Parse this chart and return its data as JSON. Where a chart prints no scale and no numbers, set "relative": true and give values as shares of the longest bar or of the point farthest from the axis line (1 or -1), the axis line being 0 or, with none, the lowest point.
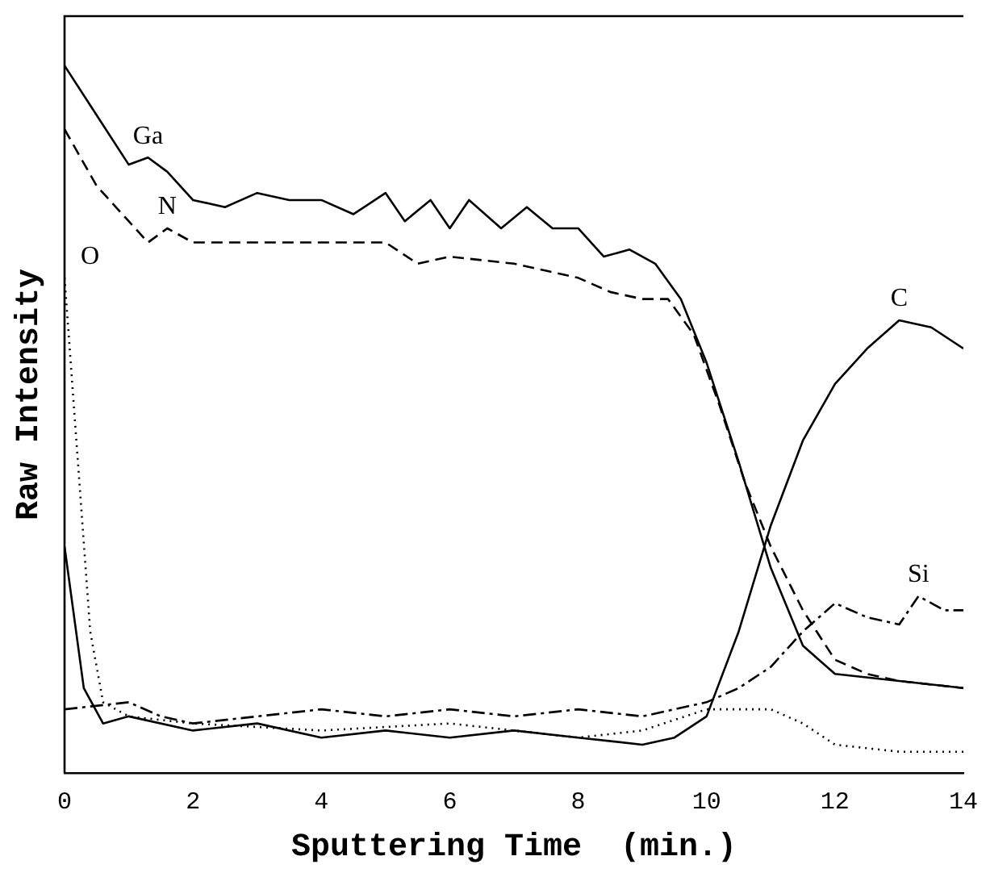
{
  "chart_data": {
    "type": "line",
    "relative": true,
    "xlabel": "Sputtering Time  (min.)",
    "ylabel": "Raw Intensity",
    "xlim": [
      0,
      14
    ],
    "xticks": [
      0,
      2,
      4,
      6,
      8,
      10,
      12,
      14
    ],
    "legend": false,
    "marker": "none",
    "grid": false,
    "series": [
      {
        "name": "Ga",
        "color": "#000000",
        "line_style": "solid",
        "x": [
          0,
          0.5,
          1,
          1.3,
          1.6,
          2,
          2.5,
          3,
          3.5,
          4,
          4.5,
          5,
          5.3,
          5.7,
          6,
          6.3,
          6.8,
          7.2,
          7.6,
          8,
          8.4,
          8.8,
          9.2,
          9.6,
          10,
          10.5,
          11,
          11.5,
          12,
          13,
          14
        ],
        "values": [
          1.0,
          0.93,
          0.86,
          0.87,
          0.85,
          0.81,
          0.8,
          0.82,
          0.81,
          0.81,
          0.79,
          0.82,
          0.78,
          0.81,
          0.77,
          0.81,
          0.77,
          0.8,
          0.77,
          0.77,
          0.73,
          0.74,
          0.72,
          0.67,
          0.58,
          0.44,
          0.29,
          0.18,
          0.14,
          0.13,
          0.12
        ]
      },
      {
        "name": "N",
        "color": "#000000",
        "line_style": "dashed",
        "x": [
          0,
          0.5,
          1,
          1.3,
          1.6,
          2,
          3,
          4,
          5,
          5.5,
          6,
          7,
          7.5,
          8,
          8.5,
          9,
          9.4,
          9.8,
          10.2,
          10.6,
          11,
          11.5,
          12,
          12.5,
          13,
          14
        ],
        "values": [
          0.91,
          0.83,
          0.78,
          0.75,
          0.77,
          0.75,
          0.75,
          0.75,
          0.75,
          0.72,
          0.73,
          0.72,
          0.71,
          0.7,
          0.68,
          0.67,
          0.67,
          0.62,
          0.52,
          0.41,
          0.32,
          0.23,
          0.16,
          0.14,
          0.13,
          0.12
        ]
      },
      {
        "name": "O",
        "color": "#000000",
        "line_style": "dotted",
        "x": [
          0,
          0.2,
          0.4,
          0.6,
          1,
          2,
          4,
          6,
          8,
          9,
          10,
          11,
          11.5,
          12,
          13,
          14
        ],
        "values": [
          0.7,
          0.45,
          0.2,
          0.1,
          0.08,
          0.07,
          0.06,
          0.07,
          0.05,
          0.06,
          0.09,
          0.09,
          0.07,
          0.04,
          0.03,
          0.03
        ]
      },
      {
        "name": "C",
        "color": "#000000",
        "line_style": "solid",
        "x": [
          0,
          0.3,
          0.6,
          1,
          2,
          3,
          4,
          5,
          6,
          7,
          8,
          9,
          9.5,
          10,
          10.5,
          11,
          11.5,
          12,
          12.5,
          13,
          13.5,
          14
        ],
        "values": [
          0.32,
          0.12,
          0.07,
          0.08,
          0.06,
          0.07,
          0.05,
          0.06,
          0.05,
          0.06,
          0.05,
          0.04,
          0.05,
          0.08,
          0.2,
          0.35,
          0.47,
          0.55,
          0.6,
          0.64,
          0.63,
          0.6
        ]
      },
      {
        "name": "Si",
        "color": "#000000",
        "line_style": "dashdot",
        "x": [
          0,
          1,
          1.5,
          2,
          3,
          4,
          5,
          6,
          7,
          8,
          9,
          10,
          10.5,
          11,
          11.5,
          12,
          12.5,
          13,
          13.3,
          13.7,
          14
        ],
        "values": [
          0.09,
          0.1,
          0.08,
          0.07,
          0.08,
          0.09,
          0.08,
          0.09,
          0.08,
          0.09,
          0.08,
          0.1,
          0.12,
          0.15,
          0.2,
          0.24,
          0.22,
          0.21,
          0.25,
          0.23,
          0.23
        ]
      }
    ]
  }
}
